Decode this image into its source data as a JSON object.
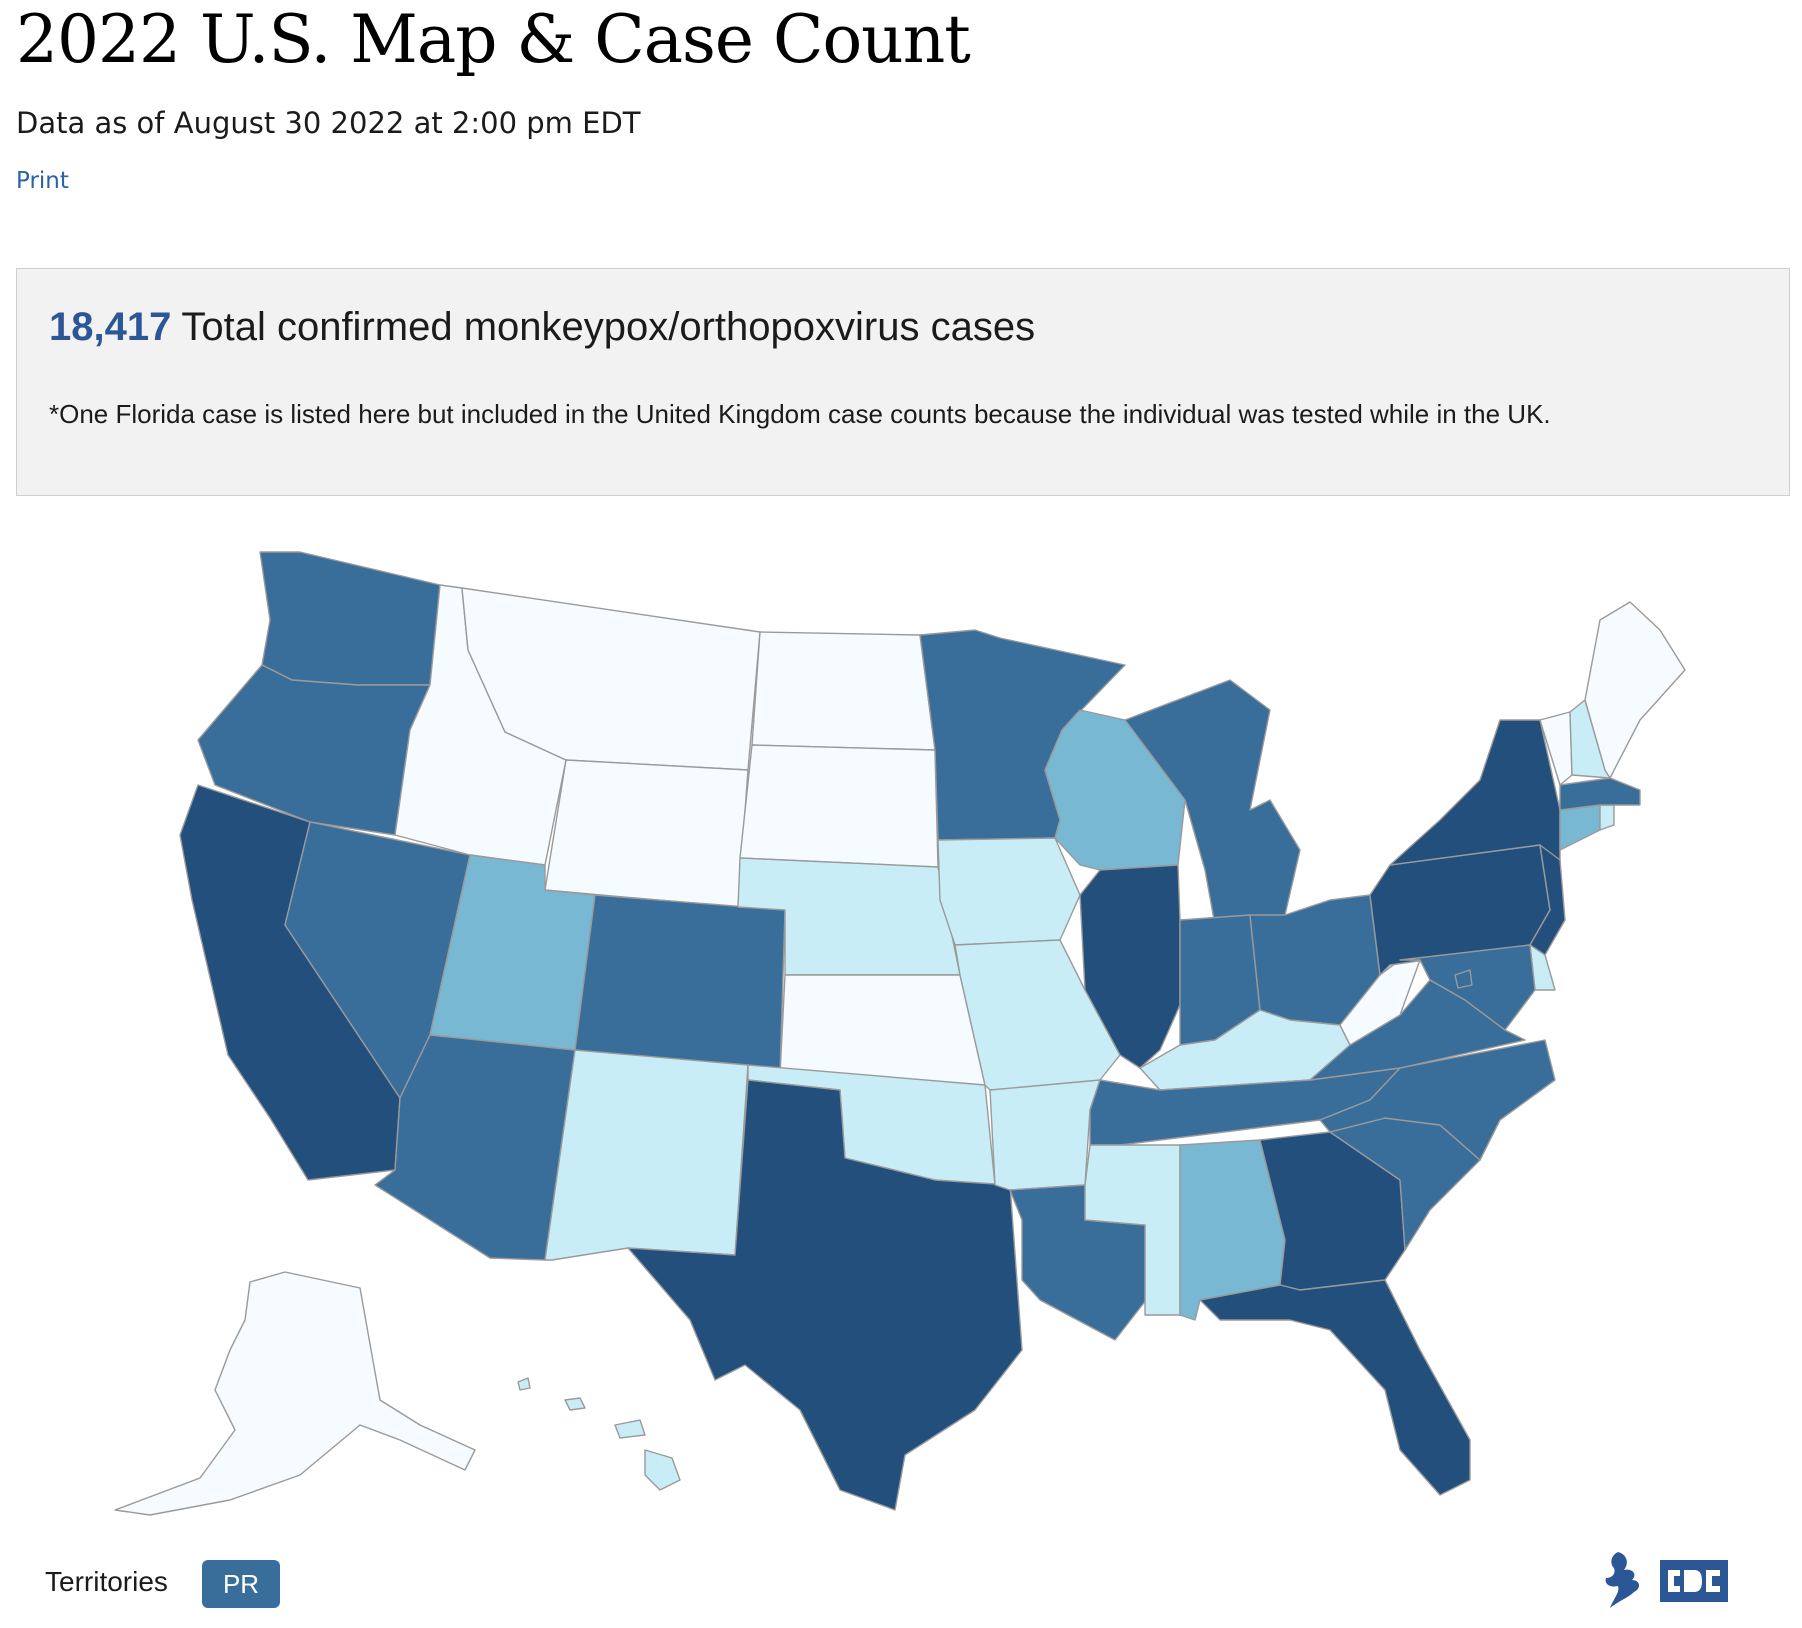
{
  "page": {
    "title": "2022 U.S. Map & Case Count",
    "as_of": "Data as of August 30 2022 at 2:00 pm EDT",
    "print_label": "Print"
  },
  "summary": {
    "total_count": "18,417",
    "total_label": "Total confirmed monkeypox/orthopoxvirus cases",
    "footnote": "*One Florida case is listed here but included in the United Kingdom case counts because the individual was tested while in the UK."
  },
  "legend_colors": {
    "level_1": "#f5fbfe",
    "level_2": "#c9edf7",
    "level_3": "#78b8d3",
    "level_4": "#3a6e9a",
    "level_5": "#234f7c"
  },
  "map": {
    "states": [
      {
        "id": "WA",
        "level": 4
      },
      {
        "id": "OR",
        "level": 4
      },
      {
        "id": "CA",
        "level": 5
      },
      {
        "id": "NV",
        "level": 4
      },
      {
        "id": "ID",
        "level": 1
      },
      {
        "id": "MT",
        "level": 1
      },
      {
        "id": "WY",
        "level": 1
      },
      {
        "id": "UT",
        "level": 3
      },
      {
        "id": "AZ",
        "level": 4
      },
      {
        "id": "CO",
        "level": 4
      },
      {
        "id": "NM",
        "level": 2
      },
      {
        "id": "ND",
        "level": 1
      },
      {
        "id": "SD",
        "level": 1
      },
      {
        "id": "NE",
        "level": 2
      },
      {
        "id": "KS",
        "level": 1
      },
      {
        "id": "OK",
        "level": 2
      },
      {
        "id": "TX",
        "level": 5
      },
      {
        "id": "MN",
        "level": 4
      },
      {
        "id": "IA",
        "level": 2
      },
      {
        "id": "MO",
        "level": 2
      },
      {
        "id": "AR",
        "level": 2
      },
      {
        "id": "LA",
        "level": 4
      },
      {
        "id": "WI",
        "level": 3
      },
      {
        "id": "IL",
        "level": 5
      },
      {
        "id": "MI",
        "level": 4
      },
      {
        "id": "IN",
        "level": 4
      },
      {
        "id": "OH",
        "level": 4
      },
      {
        "id": "KY",
        "level": 2
      },
      {
        "id": "TN",
        "level": 4
      },
      {
        "id": "MS",
        "level": 2
      },
      {
        "id": "AL",
        "level": 3
      },
      {
        "id": "GA",
        "level": 5
      },
      {
        "id": "FL",
        "level": 5
      },
      {
        "id": "SC",
        "level": 4
      },
      {
        "id": "NC",
        "level": 4
      },
      {
        "id": "VA",
        "level": 4
      },
      {
        "id": "WV",
        "level": 1
      },
      {
        "id": "PA",
        "level": 5
      },
      {
        "id": "NY",
        "level": 5
      },
      {
        "id": "NJ",
        "level": 5
      },
      {
        "id": "DE",
        "level": 2
      },
      {
        "id": "MD",
        "level": 4
      },
      {
        "id": "DC",
        "level": 4
      },
      {
        "id": "CT",
        "level": 3
      },
      {
        "id": "RI",
        "level": 2
      },
      {
        "id": "MA",
        "level": 4
      },
      {
        "id": "VT",
        "level": 1
      },
      {
        "id": "NH",
        "level": 2
      },
      {
        "id": "ME",
        "level": 1
      },
      {
        "id": "AK",
        "level": 1
      },
      {
        "id": "HI",
        "level": 2
      }
    ]
  },
  "territories": {
    "label": "Territories",
    "buttons": [
      "PR"
    ]
  }
}
